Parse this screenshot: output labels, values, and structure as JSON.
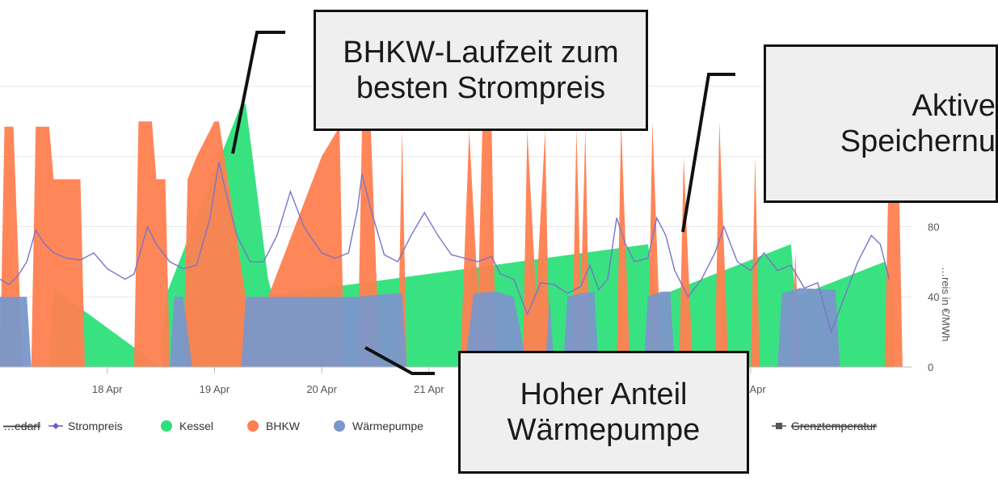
{
  "chart_data": {
    "type": "area",
    "ylabel": "…reis in €/MWh",
    "ylim": [
      0,
      200
    ],
    "y_ticks": [
      0,
      40,
      80
    ],
    "x_range": [
      "2024-04-17T00:00",
      "2024-04-25T12:00"
    ],
    "x_ticks": [
      {
        "date": "2024-04-18T00:00",
        "label": "18 Apr"
      },
      {
        "date": "2024-04-19T00:00",
        "label": "19 Apr"
      },
      {
        "date": "2024-04-20T00:00",
        "label": "20 Apr"
      },
      {
        "date": "2024-04-21T00:00",
        "label": "21 Apr"
      },
      {
        "date": "2024-04-24T00:00",
        "label": "24 Apr"
      }
    ],
    "legend": [
      {
        "label": "…edarf",
        "kind": "line",
        "color": "#555555",
        "strike": true
      },
      {
        "label": "Strompreis",
        "kind": "line-marker",
        "color": "#6a5acd",
        "strike": false
      },
      {
        "label": "Kessel",
        "kind": "dot",
        "color": "#2ee07a",
        "strike": false
      },
      {
        "label": "BHKW",
        "kind": "dot",
        "color": "#ff7f50",
        "strike": false
      },
      {
        "label": "Wärmepumpe",
        "kind": "dot",
        "color": "#7a97c9",
        "strike": false
      },
      {
        "label": "Grenztemperatur",
        "kind": "line-square",
        "color": "#555555",
        "strike": true
      }
    ],
    "series": [
      {
        "name": "Kessel",
        "color": "#2ee07a",
        "points": [
          [
            "2024-04-17T11:00",
            0
          ],
          [
            "2024-04-17T12:00",
            45
          ],
          [
            "2024-04-17T14:00",
            41
          ],
          [
            "2024-04-18T12:00",
            0
          ],
          [
            "2024-04-18T13:00",
            40
          ],
          [
            "2024-04-19T06:00",
            150
          ],
          [
            "2024-04-19T07:00",
            150
          ],
          [
            "2024-04-19T12:00",
            50
          ],
          [
            "2024-04-19T13:00",
            41
          ],
          [
            "2024-04-23T01:00",
            70
          ],
          [
            "2024-04-23T03:00",
            40
          ],
          [
            "2024-04-24T09:00",
            70
          ],
          [
            "2024-04-24T10:00",
            40
          ],
          [
            "2024-04-25T06:00",
            60
          ],
          [
            "2024-04-25T08:00",
            46
          ]
        ]
      },
      {
        "name": "BHKW",
        "color": "#ff7f50",
        "points": [
          [
            "2024-04-17T00:00",
            0
          ],
          [
            "2024-04-17T01:00",
            137
          ],
          [
            "2024-04-17T03:00",
            137
          ],
          [
            "2024-04-17T05:00",
            0
          ],
          [
            "2024-04-17T07:00",
            0
          ],
          [
            "2024-04-17T08:00",
            137
          ],
          [
            "2024-04-17T11:00",
            137
          ],
          [
            "2024-04-17T12:00",
            107
          ],
          [
            "2024-04-17T18:00",
            107
          ],
          [
            "2024-04-17T19:00",
            0
          ],
          [
            "2024-04-18T06:00",
            0
          ],
          [
            "2024-04-18T07:00",
            140
          ],
          [
            "2024-04-18T10:00",
            140
          ],
          [
            "2024-04-18T11:00",
            107
          ],
          [
            "2024-04-18T13:00",
            107
          ],
          [
            "2024-04-18T14:00",
            0
          ],
          [
            "2024-04-18T17:00",
            0
          ],
          [
            "2024-04-18T18:00",
            107
          ],
          [
            "2024-04-18T20:00",
            120
          ],
          [
            "2024-04-19T00:00",
            140
          ],
          [
            "2024-04-19T01:00",
            140
          ],
          [
            "2024-04-19T07:00",
            40
          ],
          [
            "2024-04-19T12:00",
            40
          ],
          [
            "2024-04-20T00:00",
            120
          ],
          [
            "2024-04-20T04:00",
            137
          ],
          [
            "2024-04-20T05:00",
            0
          ],
          [
            "2024-04-20T08:00",
            0
          ],
          [
            "2024-04-20T09:00",
            135
          ],
          [
            "2024-04-20T11:00",
            135
          ],
          [
            "2024-04-20T13:00",
            0
          ],
          [
            "2024-04-20T17:00",
            0
          ],
          [
            "2024-04-20T18:00",
            135
          ],
          [
            "2024-04-20T19:00",
            0
          ],
          [
            "2024-04-21T07:00",
            0
          ],
          [
            "2024-04-21T09:00",
            135
          ],
          [
            "2024-04-21T11:00",
            40
          ],
          [
            "2024-04-21T12:00",
            140
          ],
          [
            "2024-04-21T14:00",
            140
          ],
          [
            "2024-04-21T15:00",
            0
          ],
          [
            "2024-04-21T21:00",
            0
          ],
          [
            "2024-04-21T22:00",
            135
          ],
          [
            "2024-04-22T00:00",
            40
          ],
          [
            "2024-04-22T02:00",
            135
          ],
          [
            "2024-04-22T03:00",
            0
          ],
          [
            "2024-04-22T08:00",
            0
          ],
          [
            "2024-04-22T09:00",
            136
          ],
          [
            "2024-04-22T10:00",
            40
          ],
          [
            "2024-04-22T11:00",
            136
          ],
          [
            "2024-04-22T12:00",
            0
          ],
          [
            "2024-04-22T18:00",
            0
          ],
          [
            "2024-04-22T19:00",
            140
          ],
          [
            "2024-04-22T21:00",
            0
          ],
          [
            "2024-04-23T01:00",
            0
          ],
          [
            "2024-04-23T02:00",
            140
          ],
          [
            "2024-04-23T04:00",
            0
          ],
          [
            "2024-04-23T08:00",
            0
          ],
          [
            "2024-04-23T09:00",
            120
          ],
          [
            "2024-04-23T11:00",
            0
          ],
          [
            "2024-04-23T16:00",
            0
          ],
          [
            "2024-04-23T17:00",
            140
          ],
          [
            "2024-04-23T19:00",
            0
          ],
          [
            "2024-04-24T00:00",
            0
          ],
          [
            "2024-04-24T01:00",
            120
          ],
          [
            "2024-04-24T02:00",
            0
          ],
          [
            "2024-04-24T09:00",
            0
          ],
          [
            "2024-04-24T10:00",
            65
          ],
          [
            "2024-04-24T11:00",
            0
          ],
          [
            "2024-04-25T06:00",
            0
          ],
          [
            "2024-04-25T07:00",
            130
          ],
          [
            "2024-04-25T09:00",
            130
          ],
          [
            "2024-04-25T10:00",
            0
          ]
        ]
      },
      {
        "name": "Wärmepumpe",
        "color": "#7a97c9",
        "points": [
          [
            "2024-04-17T00:00",
            40
          ],
          [
            "2024-04-17T06:00",
            40
          ],
          [
            "2024-04-17T07:00",
            0
          ],
          [
            "2024-04-18T14:00",
            0
          ],
          [
            "2024-04-18T15:00",
            40
          ],
          [
            "2024-04-18T17:00",
            40
          ],
          [
            "2024-04-18T19:00",
            0
          ],
          [
            "2024-04-19T06:00",
            0
          ],
          [
            "2024-04-19T07:00",
            40
          ],
          [
            "2024-04-20T08:00",
            40
          ],
          [
            "2024-04-20T16:00",
            42
          ],
          [
            "2024-04-20T18:00",
            42
          ],
          [
            "2024-04-20T19:00",
            0
          ],
          [
            "2024-04-21T08:00",
            0
          ],
          [
            "2024-04-21T10:00",
            42
          ],
          [
            "2024-04-21T15:00",
            43
          ],
          [
            "2024-04-21T19:00",
            40
          ],
          [
            "2024-04-21T22:00",
            0
          ],
          [
            "2024-04-22T02:00",
            0
          ],
          [
            "2024-04-22T03:00",
            40
          ],
          [
            "2024-04-22T04:00",
            0
          ],
          [
            "2024-04-22T06:00",
            0
          ],
          [
            "2024-04-22T07:00",
            40
          ],
          [
            "2024-04-22T10:00",
            42
          ],
          [
            "2024-04-22T13:00",
            43
          ],
          [
            "2024-04-22T14:00",
            0
          ],
          [
            "2024-04-23T00:00",
            0
          ],
          [
            "2024-04-23T01:00",
            40
          ],
          [
            "2024-04-23T04:00",
            43
          ],
          [
            "2024-04-23T06:00",
            43
          ],
          [
            "2024-04-23T07:00",
            0
          ],
          [
            "2024-04-24T06:00",
            0
          ],
          [
            "2024-04-24T07:00",
            42
          ],
          [
            "2024-04-24T11:00",
            45
          ],
          [
            "2024-04-24T19:00",
            44
          ],
          [
            "2024-04-24T20:00",
            0
          ]
        ]
      },
      {
        "name": "Strompreis",
        "color": "#7a74c9",
        "axis": "right",
        "points": [
          [
            "2024-04-17T00:00",
            50
          ],
          [
            "2024-04-17T02:00",
            47
          ],
          [
            "2024-04-17T04:00",
            52
          ],
          [
            "2024-04-17T06:00",
            60
          ],
          [
            "2024-04-17T08:00",
            78
          ],
          [
            "2024-04-17T10:00",
            70
          ],
          [
            "2024-04-17T12:00",
            65
          ],
          [
            "2024-04-17T15:00",
            62
          ],
          [
            "2024-04-17T18:00",
            61
          ],
          [
            "2024-04-17T21:00",
            65
          ],
          [
            "2024-04-18T00:00",
            56
          ],
          [
            "2024-04-18T04:00",
            50
          ],
          [
            "2024-04-18T06:00",
            53
          ],
          [
            "2024-04-18T09:00",
            80
          ],
          [
            "2024-04-18T11:00",
            70
          ],
          [
            "2024-04-18T14:00",
            60
          ],
          [
            "2024-04-18T17:00",
            56
          ],
          [
            "2024-04-18T20:00",
            58
          ],
          [
            "2024-04-18T23:00",
            85
          ],
          [
            "2024-04-19T01:00",
            117
          ],
          [
            "2024-04-19T03:00",
            95
          ],
          [
            "2024-04-19T05:00",
            75
          ],
          [
            "2024-04-19T08:00",
            60
          ],
          [
            "2024-04-19T11:00",
            60
          ],
          [
            "2024-04-19T14:00",
            75
          ],
          [
            "2024-04-19T17:00",
            100
          ],
          [
            "2024-04-19T20:00",
            80
          ],
          [
            "2024-04-20T00:00",
            65
          ],
          [
            "2024-04-20T03:00",
            62
          ],
          [
            "2024-04-20T06:00",
            65
          ],
          [
            "2024-04-20T08:00",
            90
          ],
          [
            "2024-04-20T09:00",
            110
          ],
          [
            "2024-04-20T11:00",
            90
          ],
          [
            "2024-04-20T14:00",
            64
          ],
          [
            "2024-04-20T17:00",
            60
          ],
          [
            "2024-04-20T20:00",
            75
          ],
          [
            "2024-04-20T23:00",
            88
          ],
          [
            "2024-04-21T02:00",
            75
          ],
          [
            "2024-04-21T05:00",
            64
          ],
          [
            "2024-04-21T08:00",
            62
          ],
          [
            "2024-04-21T11:00",
            60
          ],
          [
            "2024-04-21T14:00",
            63
          ],
          [
            "2024-04-21T16:00",
            53
          ],
          [
            "2024-04-21T19:00",
            50
          ],
          [
            "2024-04-21T22:00",
            30
          ],
          [
            "2024-04-22T01:00",
            48
          ],
          [
            "2024-04-22T04:00",
            47
          ],
          [
            "2024-04-22T07:00",
            42
          ],
          [
            "2024-04-22T10:00",
            46
          ],
          [
            "2024-04-22T12:00",
            58
          ],
          [
            "2024-04-22T14:00",
            44
          ],
          [
            "2024-04-22T16:00",
            50
          ],
          [
            "2024-04-22T18:00",
            85
          ],
          [
            "2024-04-22T20:00",
            70
          ],
          [
            "2024-04-22T22:00",
            60
          ],
          [
            "2024-04-23T01:00",
            62
          ],
          [
            "2024-04-23T03:00",
            85
          ],
          [
            "2024-04-23T05:00",
            75
          ],
          [
            "2024-04-23T07:00",
            55
          ],
          [
            "2024-04-23T10:00",
            40
          ],
          [
            "2024-04-23T13:00",
            50
          ],
          [
            "2024-04-23T16:00",
            65
          ],
          [
            "2024-04-23T18:00",
            80
          ],
          [
            "2024-04-23T21:00",
            60
          ],
          [
            "2024-04-24T00:00",
            55
          ],
          [
            "2024-04-24T03:00",
            65
          ],
          [
            "2024-04-24T06:00",
            55
          ],
          [
            "2024-04-24T09:00",
            58
          ],
          [
            "2024-04-24T12:00",
            45
          ],
          [
            "2024-04-24T15:00",
            48
          ],
          [
            "2024-04-24T18:00",
            20
          ],
          [
            "2024-04-24T21:00",
            40
          ],
          [
            "2024-04-25T00:00",
            60
          ],
          [
            "2024-04-25T03:00",
            75
          ],
          [
            "2024-04-25T05:00",
            70
          ],
          [
            "2024-04-25T07:00",
            50
          ]
        ]
      }
    ]
  },
  "callouts": {
    "bhkw": {
      "line1": "BHKW-Laufzeit zum",
      "line2": "besten Strompreis"
    },
    "speicher": {
      "line1": "Aktive",
      "line2": "Speichernu"
    },
    "wp": {
      "line1": "Hoher Anteil",
      "line2": "Wärmepumpe"
    }
  }
}
